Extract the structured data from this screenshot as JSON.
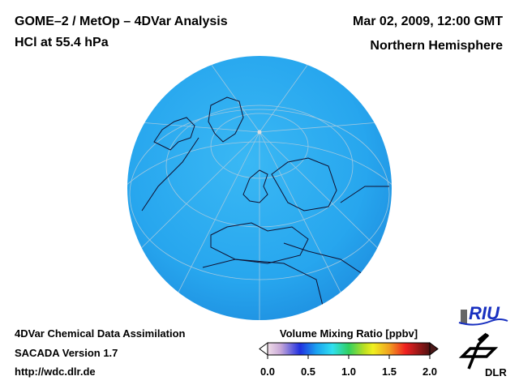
{
  "header": {
    "title_line1": "GOME–2 / MetOp – 4DVar Analysis",
    "title_line2": "HCl at 55.4 hPa",
    "date": "Mar 02, 2009, 12:00 GMT",
    "region": "Northern Hemisphere"
  },
  "footer": {
    "line1": "4DVar Chemical Data Assimilation",
    "line2": "SACADA Version 1.7",
    "url": "http://wdc.dlr.de"
  },
  "colorbar": {
    "title": "Volume Mixing Ratio [ppbv]",
    "ticks": [
      "0.0",
      "0.5",
      "1.0",
      "1.5",
      "2.0"
    ],
    "range": [
      0.0,
      2.0
    ],
    "colors": [
      "#f0dde8",
      "#c8a8d8",
      "#2030e0",
      "#1aa0f0",
      "#30e0f0",
      "#20c040",
      "#c0e020",
      "#f0f020",
      "#f0a020",
      "#f02020",
      "#e01020",
      "#501010"
    ]
  },
  "logos": {
    "riu": "RIU",
    "dlr": "DLR"
  },
  "map": {
    "ocean_color": "#2aaaf0"
  }
}
